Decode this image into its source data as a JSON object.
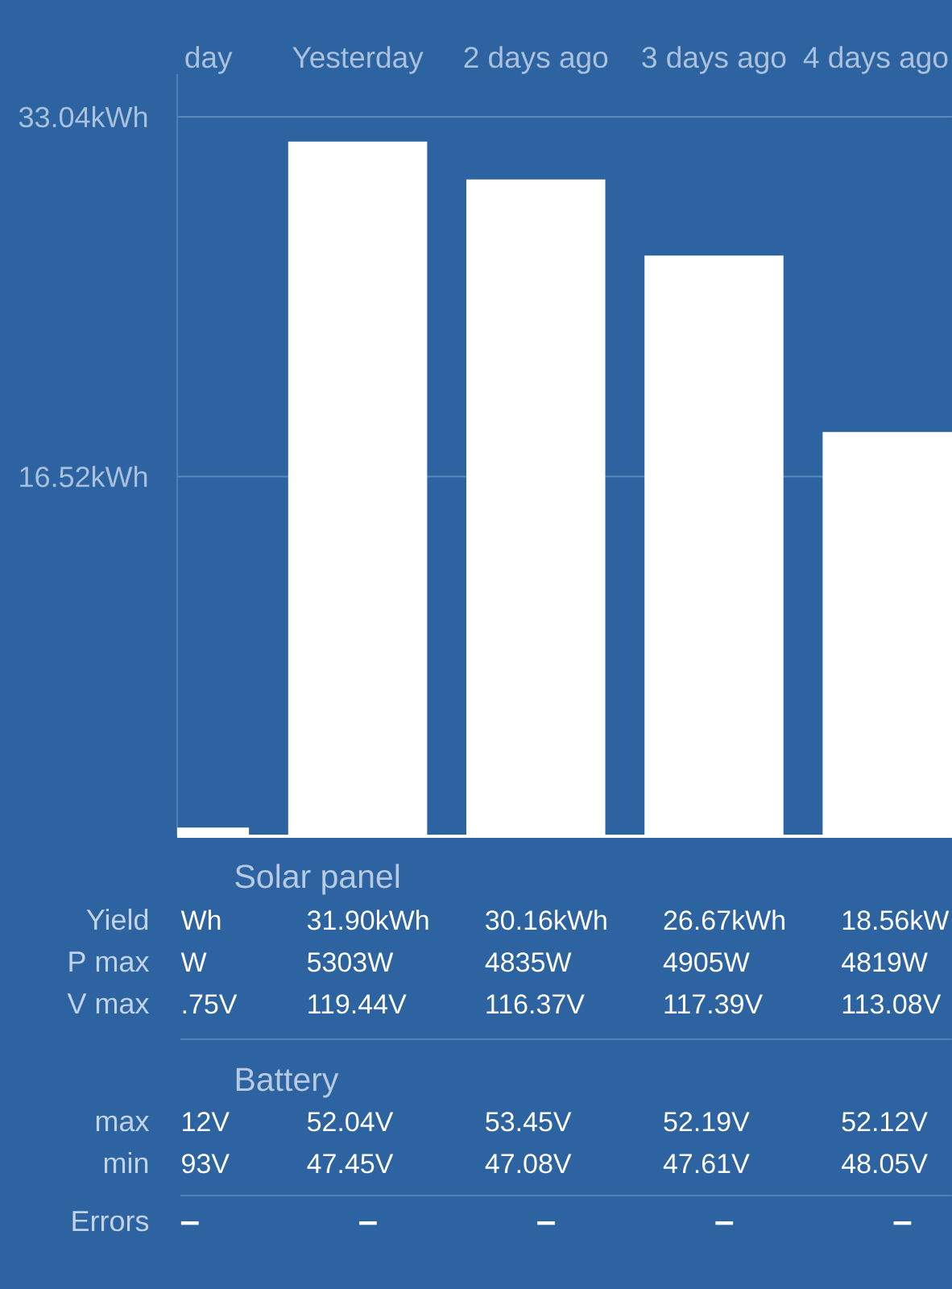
{
  "chart_data": {
    "type": "bar",
    "categories": [
      "day",
      "Yesterday",
      "2 days ago",
      "3 days ago",
      "4 days ago"
    ],
    "values": [
      0.4,
      31.9,
      30.16,
      26.67,
      18.56
    ],
    "color": "#ffffff",
    "value_labels": [
      "Wh",
      "31.90kWh",
      "30.16kWh",
      "26.67kWh",
      "18.56kW"
    ],
    "ylim": [
      0,
      35
    ],
    "yticks": [
      {
        "value": 16.52,
        "label": "16.52kWh"
      },
      {
        "value": 33.04,
        "label": "33.04kWh"
      }
    ],
    "grid": "y",
    "annotations": [
      "Solar panel",
      "Yield",
      "P max",
      "W",
      "5303W",
      "4835W",
      "4905W",
      "4819W",
      "V max",
      ".75V",
      "119.44V",
      "116.37V",
      "117.39V",
      "113.08V",
      "Battery",
      "max",
      "12V",
      "52.04V",
      "53.45V",
      "52.19V",
      "52.12V",
      "min",
      "93V",
      "47.45V",
      "47.08V",
      "47.61V",
      "48.05V",
      "Errors",
      "–",
      "–",
      "–",
      "–",
      "–"
    ]
  }
}
